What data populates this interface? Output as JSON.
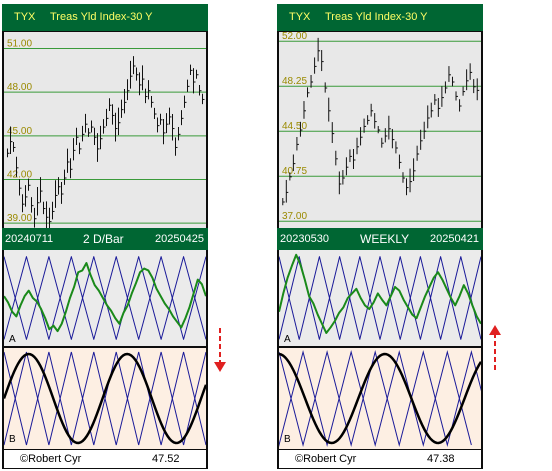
{
  "colors": {
    "header_bg": "#006633",
    "header_text": "#ffff66",
    "price_bg": "#e8e8e8",
    "grid": "#3a9a3a",
    "osc_bg": "#ebebeb",
    "cycle_bg": "#fdefe3",
    "zigzag": "#1a1a99",
    "osc_line": "#1a8a1a",
    "cycle_line": "#000000",
    "arrow": "#e02020"
  },
  "panels": [
    {
      "symbol": "TYX",
      "name": "Treas Yld Index-30 Y",
      "start_date": "20240711",
      "end_date": "20250425",
      "timeframe": "2 D/Bar",
      "author": "©Robert Cyr",
      "last_value": "47.52",
      "osc_label": "A",
      "cycle_label": "B",
      "signal_direction": "down",
      "arrow_icon": "dashed-down-arrow-icon"
    },
    {
      "symbol": "TYX",
      "name": "Treas Yld Index-30 Y",
      "start_date": "20230530",
      "end_date": "20250421",
      "timeframe": "WEEKLY",
      "author": "©Robert Cyr",
      "last_value": "47.38",
      "osc_label": "A",
      "cycle_label": "B",
      "signal_direction": "up",
      "arrow_icon": "dashed-up-arrow-icon"
    }
  ],
  "chart_data": [
    {
      "type": "bar",
      "title": "Treas Yld Index-30 Y",
      "ticks": [
        "51.00",
        "48.00",
        "45.00",
        "42.00",
        "39.00"
      ],
      "ylim": [
        38.8,
        52.0
      ],
      "x_range": [
        "20240711",
        "20250425"
      ],
      "closes": [
        43.8,
        44.6,
        44.2,
        42.8,
        41.4,
        40.3,
        40.8,
        41.6,
        40.2,
        39.3,
        40.4,
        41.2,
        40.0,
        39.4,
        39.1,
        39.8,
        40.9,
        41.5,
        41.0,
        42.1,
        43.2,
        42.7,
        44.0,
        44.9,
        44.1,
        45.1,
        45.8,
        45.2,
        45.6,
        44.9,
        44.1,
        44.8,
        45.6,
        46.2,
        47.1,
        46.4,
        45.5,
        45.9,
        46.8,
        47.3,
        48.1,
        49.1,
        49.8,
        49.2,
        48.5,
        48.9,
        47.7,
        48.1,
        47.3,
        46.5,
        45.7,
        46.1,
        45.2,
        45.8,
        46.3,
        45.5,
        44.2,
        45.1,
        46.2,
        47.3,
        48.4,
        49.5,
        48.7,
        49.2,
        48.1,
        47.5
      ]
    },
    {
      "type": "bar",
      "title": "Treas Yld Index-30 Y",
      "ticks": [
        "52.00",
        "48.25",
        "44.50",
        "40.75",
        "37.00"
      ],
      "ylim": [
        36.6,
        52.6
      ],
      "x_range": [
        "20230530",
        "20250421"
      ],
      "closes": [
        38.6,
        39.4,
        40.7,
        41.8,
        43.4,
        44.6,
        46.2,
        47.7,
        48.6,
        49.9,
        51.2,
        50.3,
        48.1,
        46.2,
        44.3,
        42.2,
        40.1,
        40.6,
        41.5,
        42.4,
        42.1,
        43.2,
        44.0,
        44.9,
        45.4,
        46.2,
        45.3,
        44.6,
        43.5,
        44.1,
        44.7,
        43.8,
        43.1,
        41.9,
        40.6,
        39.8,
        40.3,
        41.2,
        42.6,
        43.7,
        44.5,
        45.6,
        46.2,
        47.1,
        46.4,
        47.3,
        48.1,
        49.2,
        48.6,
        47.4,
        46.6,
        47.8,
        48.7,
        49.4,
        48.2,
        47.9
      ]
    },
    {
      "type": "line",
      "title": "",
      "ylim": [
        0,
        100
      ],
      "series": [
        {
          "values": [
            5,
            95,
            5,
            95,
            5,
            95,
            5,
            95,
            5,
            95
          ]
        },
        {
          "values": [
            95,
            5,
            95,
            5,
            95,
            5,
            95,
            5,
            95,
            5
          ]
        },
        {
          "values": [
            52,
            45,
            35,
            30,
            42,
            52,
            58,
            50,
            46,
            38,
            28,
            16,
            20,
            14,
            22,
            35,
            50,
            62,
            78,
            80,
            88,
            75,
            64,
            58,
            50,
            42,
            36,
            28,
            22,
            34,
            42,
            55,
            66,
            78,
            82,
            80,
            72,
            60,
            52,
            44,
            38,
            30,
            24,
            18,
            28,
            40,
            55,
            70,
            65,
            52
          ]
        }
      ]
    },
    {
      "type": "line",
      "title": "",
      "ylim": [
        0,
        100
      ],
      "series": [
        {
          "values": [
            95,
            5,
            95,
            5,
            95,
            5,
            95,
            5,
            95,
            5,
            95
          ]
        },
        {
          "values": [
            5,
            95,
            5,
            95,
            5,
            95,
            5,
            95,
            5,
            95,
            5
          ]
        },
        {
          "values": [
            35,
            55,
            72,
            85,
            97,
            86,
            70,
            52,
            44,
            32,
            22,
            12,
            18,
            25,
            34,
            40,
            50,
            55,
            60,
            50,
            42,
            38,
            45,
            55,
            48,
            42,
            52,
            62,
            58,
            48,
            40,
            32,
            28,
            40,
            52,
            62,
            72,
            78,
            70,
            60,
            50,
            42,
            52,
            64,
            55,
            42,
            30,
            22
          ]
        }
      ]
    },
    {
      "type": "line",
      "title": "",
      "ylim": [
        -1,
        1
      ],
      "cycles": {
        "thick_periods": 2.05,
        "thick_phase": 0.0,
        "thin_peaks": 4.5
      }
    },
    {
      "type": "line",
      "title": "",
      "ylim": [
        -1,
        1
      ],
      "cycles": {
        "thick_periods": 1.9,
        "thick_phase": 1.6,
        "thin_peaks": 4.2
      }
    }
  ]
}
